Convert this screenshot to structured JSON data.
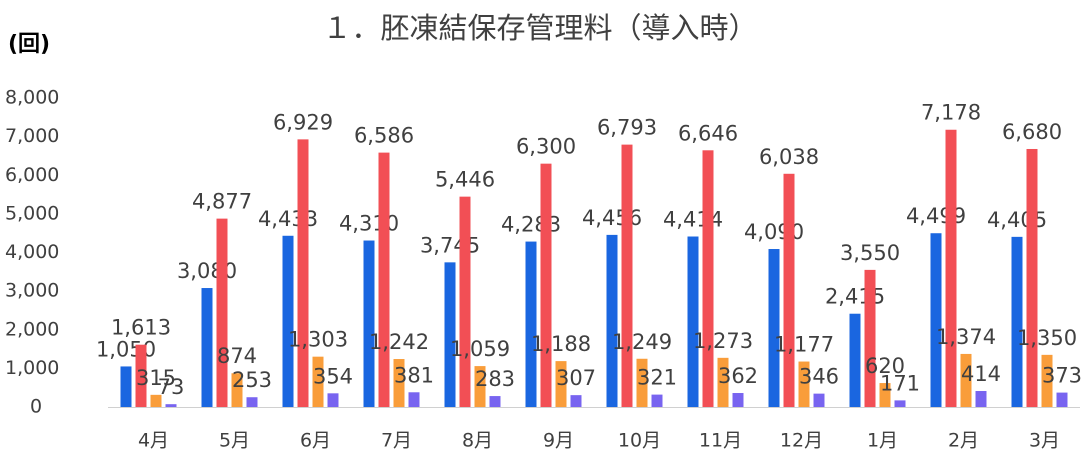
{
  "chart_data": {
    "type": "bar",
    "title": "１．胚凍結保存管理料（導入時）",
    "y_label": "(回)",
    "categories": [
      "4月",
      "5月",
      "6月",
      "7月",
      "8月",
      "9月",
      "10月",
      "11月",
      "12月",
      "1月",
      "2月",
      "3月"
    ],
    "series": [
      {
        "color": "#1a66e0",
        "values": [
          1050,
          3080,
          4433,
          4310,
          3745,
          4283,
          4456,
          4414,
          4090,
          2415,
          4499,
          4405
        ],
        "value_labels": [
          "1,050",
          "3,080",
          "4,433",
          "4,310",
          "3,745",
          "4,283",
          "4,456",
          "4,414",
          "4,090",
          "2,415",
          "4,499",
          "4,405"
        ]
      },
      {
        "color": "#f24f55",
        "values": [
          1613,
          4877,
          6929,
          6586,
          5446,
          6300,
          6793,
          6646,
          6038,
          3550,
          7178,
          6680
        ],
        "value_labels": [
          "1,613",
          "4,877",
          "6,929",
          "6,586",
          "5,446",
          "6,300",
          "6,793",
          "6,646",
          "6,038",
          "3,550",
          "7,178",
          "6,680"
        ]
      },
      {
        "color": "#f99d3a",
        "values": [
          315,
          874,
          1303,
          1242,
          1059,
          1188,
          1249,
          1273,
          1177,
          620,
          1374,
          1350
        ],
        "value_labels": [
          "315",
          "874",
          "1,303",
          "1,242",
          "1,059",
          "1,188",
          "1,249",
          "1,273",
          "1,177",
          "620",
          "1,374",
          "1,350"
        ]
      },
      {
        "color": "#7864f0",
        "values": [
          73,
          253,
          354,
          381,
          283,
          307,
          321,
          362,
          346,
          171,
          414,
          373
        ]
      }
    ],
    "ylim": [
      0,
      8000
    ],
    "yticks": [
      0,
      {
        "value": 1000,
        "label": "1,000"
      },
      {
        "value": 2000,
        "label": "2,000"
      },
      {
        "value": 3000,
        "label": "3,000"
      },
      {
        "value": 4000,
        "label": "4,000"
      },
      {
        "value": 5000,
        "label": "5,000"
      },
      {
        "value": 6000,
        "label": "6,000"
      },
      {
        "value": 7000,
        "label": "7,000"
      },
      {
        "value": 8000,
        "label": "8,000"
      }
    ],
    "grid": false
  }
}
